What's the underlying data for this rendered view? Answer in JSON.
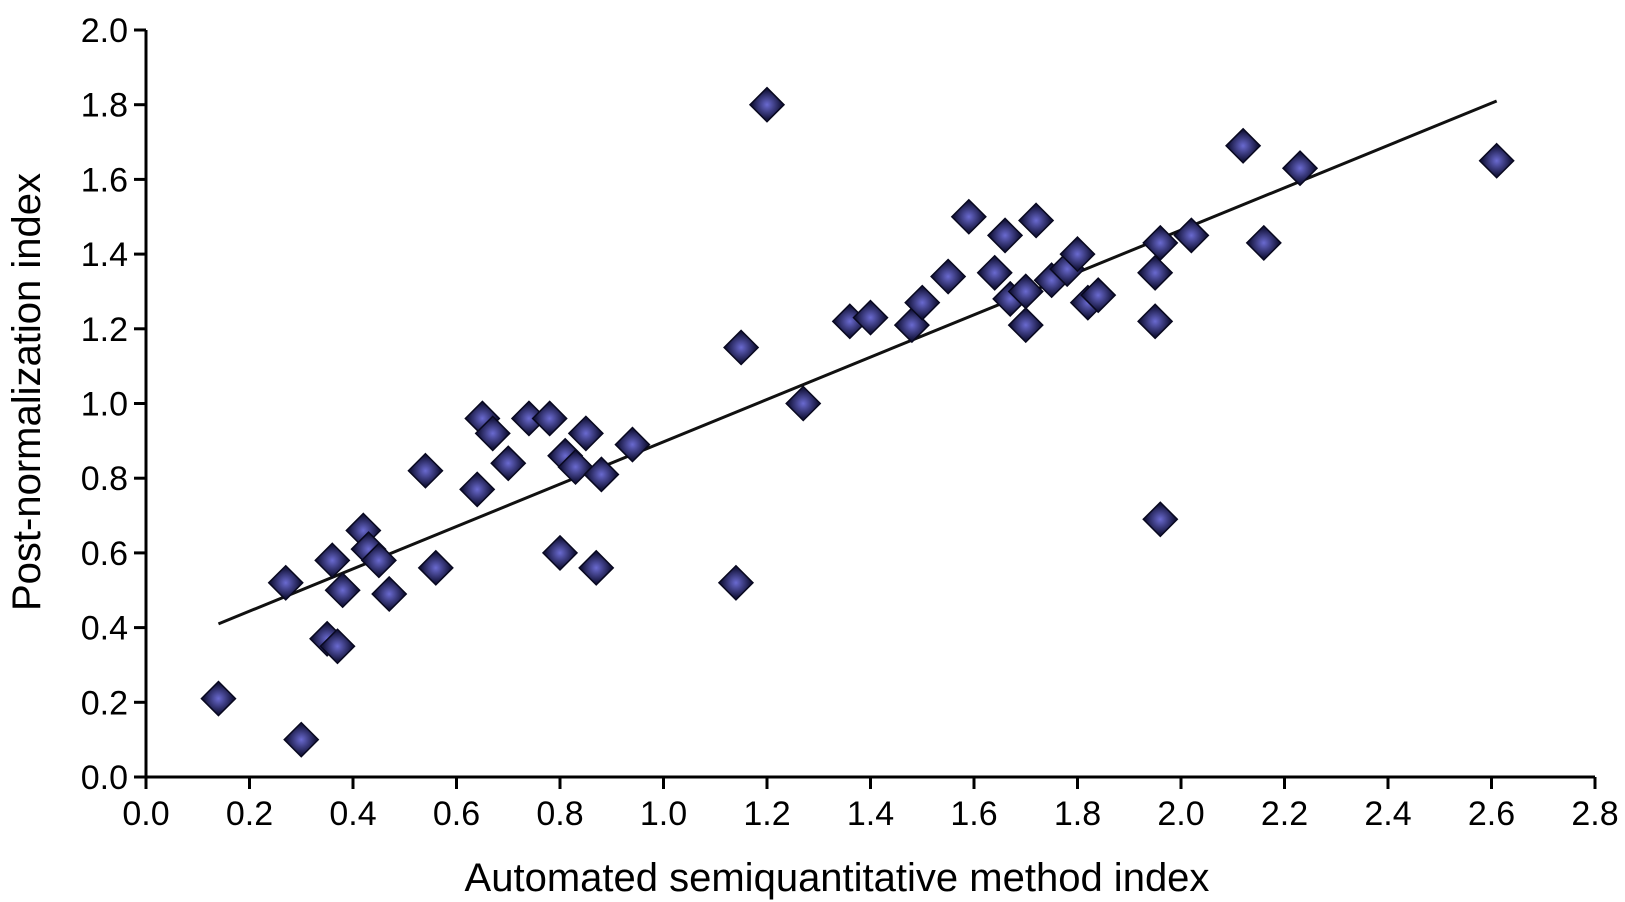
{
  "chart_data": {
    "type": "scatter",
    "title": "",
    "xlabel": "Automated semiquantitative method index",
    "ylabel": "Post-normalization index",
    "xlim": [
      0.0,
      2.8
    ],
    "ylim": [
      0.0,
      2.0
    ],
    "xticks": [
      "0.0",
      "0.2",
      "0.4",
      "0.6",
      "0.8",
      "1.0",
      "1.2",
      "1.4",
      "1.6",
      "1.8",
      "2.0",
      "2.2",
      "2.4",
      "2.6",
      "2.8"
    ],
    "yticks": [
      "0.0",
      "0.2",
      "0.4",
      "0.6",
      "0.8",
      "1.0",
      "1.2",
      "1.4",
      "1.6",
      "1.8",
      "2.0"
    ],
    "grid": false,
    "legend": "none",
    "marker": "diamond",
    "marker_color": "#16163f",
    "marker_highlight": "#6a6ad0",
    "trendline": {
      "x": [
        0.14,
        2.61
      ],
      "y": [
        0.41,
        1.81
      ]
    },
    "series": [
      {
        "x": [
          0.14,
          0.27,
          0.3,
          0.35,
          0.36,
          0.37,
          0.38,
          0.42,
          0.43,
          0.45,
          0.47,
          0.54,
          0.56,
          0.64,
          0.65,
          0.67,
          0.7,
          0.74,
          0.78,
          0.8,
          0.81,
          0.83,
          0.85,
          0.87,
          0.88,
          0.94,
          1.14,
          1.15,
          1.2,
          1.27,
          1.36,
          1.4,
          1.48,
          1.5,
          1.55,
          1.59,
          1.64,
          1.66,
          1.67,
          1.7,
          1.7,
          1.72,
          1.75,
          1.78,
          1.8,
          1.82,
          1.84,
          1.95,
          1.95,
          1.96,
          1.96,
          2.02,
          2.12,
          2.16,
          2.23,
          2.61
        ],
        "y": [
          0.21,
          0.52,
          0.1,
          0.37,
          0.58,
          0.35,
          0.5,
          0.66,
          0.61,
          0.58,
          0.49,
          0.82,
          0.56,
          0.77,
          0.96,
          0.92,
          0.84,
          0.96,
          0.96,
          0.6,
          0.86,
          0.83,
          0.92,
          0.56,
          0.81,
          0.89,
          0.52,
          1.15,
          1.8,
          1.0,
          1.22,
          1.23,
          1.21,
          1.27,
          1.34,
          1.5,
          1.35,
          1.45,
          1.28,
          1.21,
          1.3,
          1.49,
          1.33,
          1.36,
          1.4,
          1.27,
          1.29,
          1.35,
          1.22,
          0.69,
          1.43,
          1.45,
          1.69,
          1.43,
          1.63,
          1.65
        ]
      }
    ]
  }
}
